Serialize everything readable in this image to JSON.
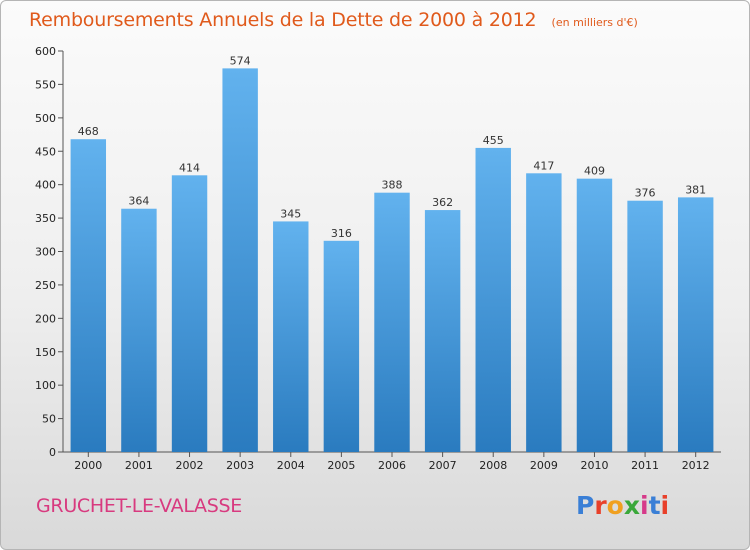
{
  "header": {
    "title": "Remboursements Annuels de la Dette de 2000 à 2012",
    "unit": "(en milliers d'€)"
  },
  "footer": {
    "town": "GRUCHET-LE-VALASSE",
    "logo_letters": [
      "P",
      "r",
      "o",
      "x",
      "i",
      "t",
      "i"
    ],
    "logo_colors": [
      "#3a7fd6",
      "#e8402a",
      "#f0a020",
      "#3aa83a",
      "#d63a8a",
      "#3a7fd6",
      "#e8402a"
    ]
  },
  "colors": {
    "bar_top": "#62b2ee",
    "bar_bottom": "#2a7bbf",
    "title": "#e05a1c",
    "town": "#d83a7f"
  },
  "chart_data": {
    "type": "bar",
    "title": "Remboursements Annuels de la Dette de 2000 à 2012",
    "subtitle": "(en milliers d'€)",
    "xlabel": "",
    "ylabel": "",
    "categories": [
      "2000",
      "2001",
      "2002",
      "2003",
      "2004",
      "2005",
      "2006",
      "2007",
      "2008",
      "2009",
      "2010",
      "2011",
      "2012"
    ],
    "values": [
      468,
      364,
      414,
      574,
      345,
      316,
      388,
      362,
      455,
      417,
      409,
      376,
      381
    ],
    "ylim": [
      0,
      600
    ],
    "yticks": [
      0,
      50,
      100,
      150,
      200,
      250,
      300,
      350,
      400,
      450,
      500,
      550,
      600
    ],
    "grid": false,
    "legend": "none"
  }
}
